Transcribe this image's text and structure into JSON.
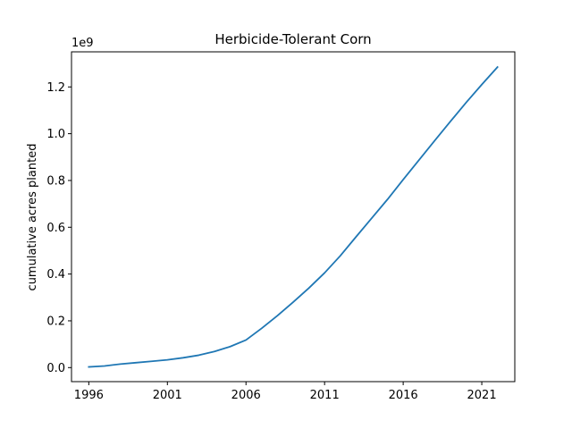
{
  "chart_data": {
    "type": "line",
    "title": "Herbicide-Tolerant Corn",
    "xlabel": "",
    "ylabel": "cumulative acres planted",
    "y_offset_label": "1e9",
    "xlim": [
      1994.9,
      2023.1
    ],
    "ylim": [
      -0.06,
      1.35
    ],
    "x_ticks": [
      1996,
      2001,
      2006,
      2011,
      2016,
      2021
    ],
    "x_tick_labels": [
      "1996",
      "2001",
      "2006",
      "2011",
      "2016",
      "2021"
    ],
    "y_ticks": [
      0.0,
      0.2,
      0.4,
      0.6,
      0.8,
      1.0,
      1.2
    ],
    "y_tick_labels": [
      "0.0",
      "0.2",
      "0.4",
      "0.6",
      "0.8",
      "1.0",
      "1.2"
    ],
    "grid": false,
    "series": [
      {
        "color": "#1f77b4",
        "x": [
          1996,
          1997,
          1998,
          1999,
          2000,
          2001,
          2002,
          2003,
          2004,
          2005,
          2006,
          2007,
          2008,
          2009,
          2010,
          2011,
          2012,
          2013,
          2014,
          2015,
          2016,
          2017,
          2018,
          2019,
          2020,
          2021,
          2022
        ],
        "y": [
          0.003,
          0.007,
          0.015,
          0.021,
          0.027,
          0.033,
          0.042,
          0.053,
          0.069,
          0.09,
          0.118,
          0.168,
          0.222,
          0.28,
          0.34,
          0.405,
          0.478,
          0.559,
          0.639,
          0.719,
          0.804,
          0.887,
          0.97,
          1.052,
          1.133,
          1.21,
          1.285
        ]
      }
    ]
  }
}
